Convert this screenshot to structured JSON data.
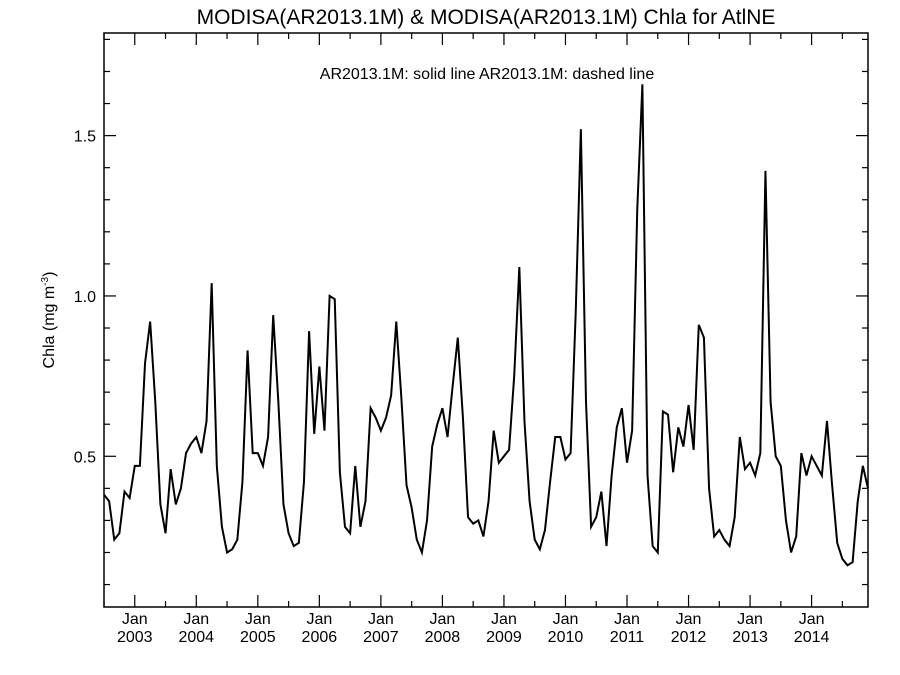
{
  "chart_data": {
    "type": "line",
    "title": "MODISA(AR2013.1M) & MODISA(AR2013.1M)  Chla for AtlNE",
    "legend_text": "AR2013.1M: solid line   AR2013.1M: dashed line",
    "ylabel_main": "Chla (mg m",
    "ylabel_sup": "-3",
    "ylabel_close": ")",
    "ylim": [
      0.03,
      1.82
    ],
    "xlim": [
      "2002-07",
      "2014-12"
    ],
    "y_ticks": [
      {
        "value": 0.5,
        "label": "0.5"
      },
      {
        "value": 1.0,
        "label": "1.0"
      },
      {
        "value": 1.5,
        "label": "1.5"
      }
    ],
    "x_ticks": [
      {
        "date": "2003-01",
        "month": "Jan",
        "year": "2003"
      },
      {
        "date": "2004-01",
        "month": "Jan",
        "year": "2004"
      },
      {
        "date": "2005-01",
        "month": "Jan",
        "year": "2005"
      },
      {
        "date": "2006-01",
        "month": "Jan",
        "year": "2006"
      },
      {
        "date": "2007-01",
        "month": "Jan",
        "year": "2007"
      },
      {
        "date": "2008-01",
        "month": "Jan",
        "year": "2008"
      },
      {
        "date": "2009-01",
        "month": "Jan",
        "year": "2009"
      },
      {
        "date": "2010-01",
        "month": "Jan",
        "year": "2010"
      },
      {
        "date": "2011-01",
        "month": "Jan",
        "year": "2011"
      },
      {
        "date": "2012-01",
        "month": "Jan",
        "year": "2012"
      },
      {
        "date": "2013-01",
        "month": "Jan",
        "year": "2013"
      },
      {
        "date": "2014-01",
        "month": "Jan",
        "year": "2014"
      }
    ],
    "series": [
      {
        "style": "solid",
        "color": "#000000",
        "start": "2002-07",
        "values": [
          0.38,
          0.36,
          0.24,
          0.26,
          0.39,
          0.37,
          0.47,
          0.47,
          0.79,
          0.92,
          0.67,
          0.35,
          0.26,
          0.46,
          0.35,
          0.4,
          0.51,
          0.54,
          0.56,
          0.51,
          0.61,
          1.04,
          0.47,
          0.28,
          0.2,
          0.21,
          0.24,
          0.42,
          0.83,
          0.51,
          0.51,
          0.47,
          0.56,
          0.94,
          0.67,
          0.35,
          0.26,
          0.22,
          0.23,
          0.42,
          0.89,
          0.57,
          0.78,
          0.58,
          1.0,
          0.99,
          0.45,
          0.28,
          0.26,
          0.47,
          0.28,
          0.36,
          0.65,
          0.62,
          0.58,
          0.62,
          0.69,
          0.92,
          0.68,
          0.41,
          0.34,
          0.24,
          0.2,
          0.3,
          0.53,
          0.6,
          0.65,
          0.56,
          0.72,
          0.87,
          0.62,
          0.31,
          0.29,
          0.3,
          0.25,
          0.36,
          0.58,
          0.48,
          0.5,
          0.52,
          0.75,
          1.09,
          0.61,
          0.36,
          0.24,
          0.21,
          0.27,
          0.42,
          0.56,
          0.56,
          0.49,
          0.51,
          0.95,
          1.52,
          0.67,
          0.28,
          0.31,
          0.39,
          0.22,
          0.44,
          0.59,
          0.65,
          0.48,
          0.58,
          1.27,
          1.66,
          0.44,
          0.22,
          0.2,
          0.64,
          0.63,
          0.45,
          0.59,
          0.53,
          0.66,
          0.52,
          0.91,
          0.87,
          0.4,
          0.25,
          0.27,
          0.24,
          0.22,
          0.31,
          0.56,
          0.46,
          0.48,
          0.44,
          0.51,
          1.39,
          0.67,
          0.5,
          0.47,
          0.3,
          0.2,
          0.25,
          0.51,
          0.44,
          0.5,
          0.47,
          0.44,
          0.61,
          0.41,
          0.23,
          0.18,
          0.16,
          0.17,
          0.36,
          0.47,
          0.4
        ]
      }
    ]
  }
}
